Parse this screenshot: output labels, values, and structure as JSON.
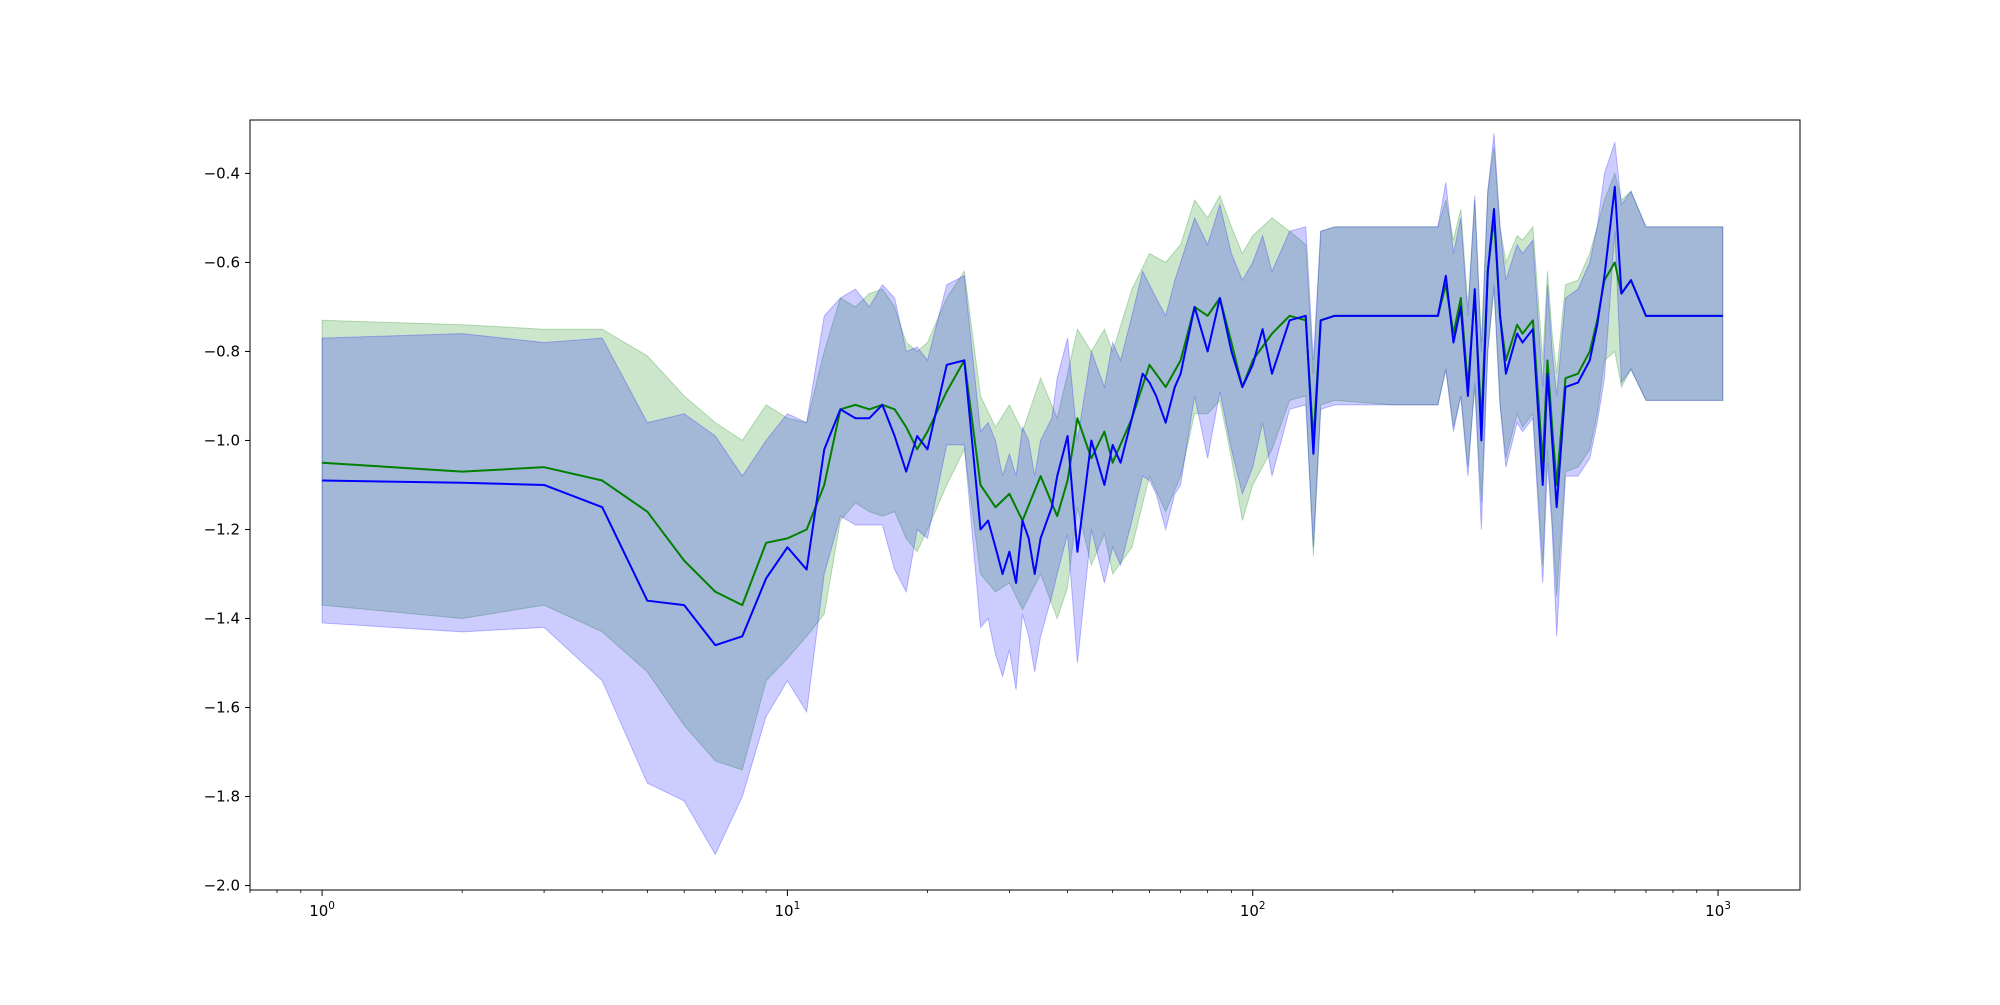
{
  "chart_data": {
    "type": "line",
    "title": "",
    "xlabel": "",
    "ylabel": "",
    "x_scale": "log",
    "xlim": [
      0.7,
      1500
    ],
    "ylim": [
      -2.01,
      -0.28
    ],
    "grid": false,
    "x_ticks": [
      {
        "value": 1,
        "base": "10",
        "exp": "0"
      },
      {
        "value": 10,
        "base": "10",
        "exp": "1"
      },
      {
        "value": 100,
        "base": "10",
        "exp": "2"
      },
      {
        "value": 1000,
        "base": "10",
        "exp": "3"
      }
    ],
    "y_ticks": [
      {
        "value": -0.4,
        "label": "−0.4"
      },
      {
        "value": -0.6,
        "label": "−0.6"
      },
      {
        "value": -0.8,
        "label": "−0.8"
      },
      {
        "value": -1.0,
        "label": "−1.0"
      },
      {
        "value": -1.2,
        "label": "−1.2"
      },
      {
        "value": -1.4,
        "label": "−1.4"
      },
      {
        "value": -1.6,
        "label": "−1.6"
      },
      {
        "value": -1.8,
        "label": "−1.8"
      },
      {
        "value": -2.0,
        "label": "−2.0"
      }
    ],
    "series": [
      {
        "color": "#008000",
        "band_color": "#008000",
        "band_opacity": 0.2,
        "x": [
          1,
          2,
          3,
          4,
          5,
          6,
          7,
          8,
          9,
          10,
          11,
          12,
          13,
          14,
          15,
          16,
          17,
          18,
          19,
          20,
          22,
          24,
          26,
          28,
          30,
          32,
          35,
          38,
          40,
          42,
          45,
          48,
          50,
          55,
          60,
          65,
          70,
          75,
          80,
          85,
          90,
          95,
          100,
          110,
          120,
          130,
          135,
          140,
          150,
          200,
          250,
          260,
          270,
          280,
          290,
          300,
          310,
          320,
          330,
          340,
          350,
          370,
          380,
          400,
          420,
          430,
          440,
          450,
          470,
          500,
          530,
          550,
          570,
          600,
          620,
          650,
          700,
          800,
          1024
        ],
        "y": [
          -1.05,
          -1.07,
          -1.06,
          -1.09,
          -1.16,
          -1.27,
          -1.34,
          -1.37,
          -1.23,
          -1.22,
          -1.2,
          -1.1,
          -0.93,
          -0.92,
          -0.93,
          -0.92,
          -0.93,
          -0.97,
          -1.02,
          -0.98,
          -0.89,
          -0.82,
          -1.1,
          -1.15,
          -1.12,
          -1.18,
          -1.08,
          -1.17,
          -1.09,
          -0.95,
          -1.04,
          -0.98,
          -1.05,
          -0.95,
          -0.83,
          -0.88,
          -0.82,
          -0.7,
          -0.72,
          -0.68,
          -0.78,
          -0.88,
          -0.82,
          -0.76,
          -0.72,
          -0.73,
          -1.0,
          -0.73,
          -0.72,
          -0.72,
          -0.72,
          -0.65,
          -0.76,
          -0.68,
          -0.88,
          -0.67,
          -0.96,
          -0.62,
          -0.5,
          -0.72,
          -0.82,
          -0.74,
          -0.76,
          -0.73,
          -1.05,
          -0.82,
          -0.97,
          -1.1,
          -0.86,
          -0.85,
          -0.8,
          -0.73,
          -0.64,
          -0.6,
          -0.67,
          -0.64,
          -0.72,
          -0.72,
          -0.72
        ],
        "upper": [
          -0.73,
          -0.74,
          -0.75,
          -0.75,
          -0.81,
          -0.9,
          -0.96,
          -1.0,
          -0.92,
          -0.95,
          -0.96,
          -0.8,
          -0.68,
          -0.7,
          -0.67,
          -0.66,
          -0.7,
          -0.78,
          -0.8,
          -0.78,
          -0.68,
          -0.62,
          -0.9,
          -0.97,
          -0.92,
          -0.98,
          -0.86,
          -0.95,
          -0.85,
          -0.75,
          -0.8,
          -0.75,
          -0.8,
          -0.66,
          -0.58,
          -0.6,
          -0.56,
          -0.46,
          -0.5,
          -0.45,
          -0.52,
          -0.58,
          -0.54,
          -0.5,
          -0.53,
          -0.56,
          -0.85,
          -0.53,
          -0.52,
          -0.52,
          -0.52,
          -0.46,
          -0.55,
          -0.48,
          -0.7,
          -0.46,
          -0.78,
          -0.44,
          -0.34,
          -0.52,
          -0.6,
          -0.54,
          -0.55,
          -0.52,
          -0.82,
          -0.62,
          -0.76,
          -0.85,
          -0.65,
          -0.64,
          -0.58,
          -0.52,
          -0.46,
          -0.4,
          -0.46,
          -0.44,
          -0.52,
          -0.52,
          -0.52
        ],
        "lower": [
          -1.37,
          -1.4,
          -1.37,
          -1.43,
          -1.52,
          -1.64,
          -1.72,
          -1.74,
          -1.54,
          -1.49,
          -1.44,
          -1.39,
          -1.18,
          -1.14,
          -1.16,
          -1.17,
          -1.16,
          -1.22,
          -1.25,
          -1.2,
          -1.1,
          -1.02,
          -1.3,
          -1.34,
          -1.32,
          -1.38,
          -1.3,
          -1.4,
          -1.33,
          -1.15,
          -1.28,
          -1.21,
          -1.3,
          -1.24,
          -1.08,
          -1.16,
          -1.08,
          -0.94,
          -0.94,
          -0.91,
          -1.04,
          -1.18,
          -1.1,
          -1.02,
          -0.91,
          -0.9,
          -1.26,
          -0.92,
          -0.91,
          -0.92,
          -0.92,
          -0.84,
          -0.97,
          -0.9,
          -1.06,
          -0.88,
          -1.14,
          -0.8,
          -0.66,
          -0.92,
          -1.04,
          -0.94,
          -0.97,
          -0.94,
          -1.28,
          -1.02,
          -1.18,
          -1.35,
          -1.07,
          -1.06,
          -1.02,
          -0.94,
          -0.82,
          -0.8,
          -0.88,
          -0.84,
          -0.91,
          -0.91,
          -0.91
        ]
      },
      {
        "color": "#0000ff",
        "band_color": "#0000ff",
        "band_opacity": 0.2,
        "x": [
          1,
          2,
          3,
          4,
          5,
          6,
          7,
          8,
          9,
          10,
          11,
          12,
          13,
          14,
          15,
          16,
          17,
          18,
          19,
          20,
          22,
          24,
          26,
          27,
          28,
          29,
          30,
          31,
          32,
          33,
          34,
          35,
          37,
          38,
          40,
          42,
          45,
          48,
          50,
          52,
          55,
          58,
          60,
          62,
          65,
          68,
          70,
          75,
          80,
          85,
          90,
          95,
          100,
          105,
          110,
          120,
          130,
          135,
          140,
          150,
          200,
          250,
          260,
          270,
          280,
          290,
          300,
          310,
          320,
          330,
          340,
          350,
          370,
          380,
          400,
          420,
          430,
          440,
          450,
          470,
          500,
          530,
          550,
          570,
          600,
          620,
          650,
          700,
          800,
          1024
        ],
        "y": [
          -1.09,
          -1.095,
          -1.1,
          -1.15,
          -1.36,
          -1.37,
          -1.46,
          -1.44,
          -1.31,
          -1.24,
          -1.29,
          -1.02,
          -0.93,
          -0.95,
          -0.95,
          -0.92,
          -0.99,
          -1.07,
          -0.99,
          -1.02,
          -0.83,
          -0.82,
          -1.2,
          -1.18,
          -1.24,
          -1.3,
          -1.25,
          -1.32,
          -1.18,
          -1.22,
          -1.3,
          -1.22,
          -1.15,
          -1.08,
          -0.99,
          -1.25,
          -1.0,
          -1.1,
          -1.01,
          -1.05,
          -0.95,
          -0.85,
          -0.87,
          -0.9,
          -0.96,
          -0.88,
          -0.85,
          -0.7,
          -0.8,
          -0.68,
          -0.8,
          -0.88,
          -0.83,
          -0.75,
          -0.85,
          -0.73,
          -0.72,
          -1.03,
          -0.73,
          -0.72,
          -0.72,
          -0.72,
          -0.63,
          -0.78,
          -0.7,
          -0.9,
          -0.66,
          -1.0,
          -0.62,
          -0.48,
          -0.72,
          -0.85,
          -0.76,
          -0.78,
          -0.75,
          -1.1,
          -0.85,
          -1.0,
          -1.15,
          -0.88,
          -0.87,
          -0.82,
          -0.74,
          -0.63,
          -0.43,
          -0.67,
          -0.64,
          -0.72,
          -0.72,
          -0.72
        ],
        "upper": [
          -0.77,
          -0.76,
          -0.78,
          -0.77,
          -0.96,
          -0.94,
          -0.99,
          -1.08,
          -1.0,
          -0.94,
          -0.96,
          -0.72,
          -0.68,
          -0.66,
          -0.7,
          -0.65,
          -0.68,
          -0.8,
          -0.79,
          -0.82,
          -0.65,
          -0.63,
          -0.98,
          -0.96,
          -1.0,
          -1.08,
          -1.03,
          -1.08,
          -0.97,
          -1.0,
          -1.08,
          -1.0,
          -0.95,
          -0.86,
          -0.77,
          -1.0,
          -0.8,
          -0.88,
          -0.78,
          -0.82,
          -0.72,
          -0.62,
          -0.65,
          -0.68,
          -0.72,
          -0.64,
          -0.6,
          -0.5,
          -0.56,
          -0.47,
          -0.58,
          -0.64,
          -0.6,
          -0.54,
          -0.62,
          -0.53,
          -0.52,
          -0.82,
          -0.53,
          -0.52,
          -0.52,
          -0.52,
          -0.42,
          -0.58,
          -0.5,
          -0.72,
          -0.45,
          -0.8,
          -0.44,
          -0.31,
          -0.52,
          -0.64,
          -0.56,
          -0.58,
          -0.55,
          -0.88,
          -0.65,
          -0.8,
          -0.9,
          -0.68,
          -0.66,
          -0.6,
          -0.52,
          -0.4,
          -0.33,
          -0.47,
          -0.44,
          -0.52,
          -0.52,
          -0.52
        ],
        "lower": [
          -1.41,
          -1.43,
          -1.42,
          -1.54,
          -1.77,
          -1.81,
          -1.93,
          -1.8,
          -1.62,
          -1.54,
          -1.61,
          -1.3,
          -1.17,
          -1.19,
          -1.19,
          -1.19,
          -1.29,
          -1.34,
          -1.2,
          -1.22,
          -1.01,
          -1.01,
          -1.42,
          -1.4,
          -1.48,
          -1.53,
          -1.47,
          -1.56,
          -1.39,
          -1.44,
          -1.52,
          -1.44,
          -1.35,
          -1.3,
          -1.21,
          -1.5,
          -1.2,
          -1.32,
          -1.24,
          -1.28,
          -1.18,
          -1.08,
          -1.09,
          -1.12,
          -1.2,
          -1.12,
          -1.1,
          -0.9,
          -1.04,
          -0.89,
          -1.02,
          -1.12,
          -1.06,
          -0.96,
          -1.08,
          -0.93,
          -0.92,
          -1.24,
          -0.93,
          -0.92,
          -0.92,
          -0.92,
          -0.84,
          -0.98,
          -0.9,
          -1.08,
          -0.87,
          -1.2,
          -0.8,
          -0.65,
          -0.92,
          -1.06,
          -0.96,
          -0.98,
          -0.95,
          -1.32,
          -1.05,
          -1.2,
          -1.44,
          -1.08,
          -1.08,
          -1.04,
          -0.96,
          -0.86,
          -0.53,
          -0.87,
          -0.84,
          -0.91,
          -0.91,
          -0.91
        ]
      }
    ]
  }
}
